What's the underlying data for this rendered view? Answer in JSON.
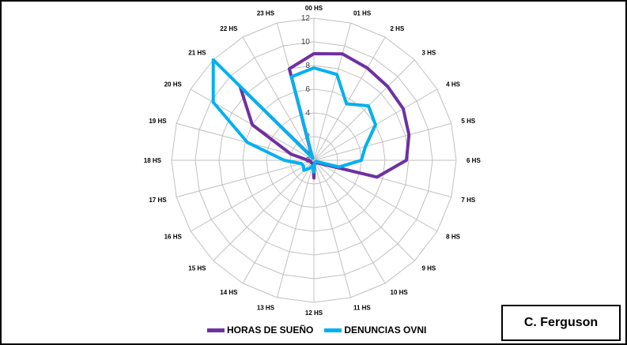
{
  "chart_data": {
    "type": "radar",
    "categories": [
      "00 HS",
      "01 HS",
      "2 HS",
      "3 HS",
      "4 HS",
      "5 HS",
      "6 HS",
      "7 HS",
      "8 HS",
      "9 HS",
      "10 HS",
      "11 HS",
      "12 HS",
      "13 HS",
      "14 HS",
      "15 HS",
      "16 HS",
      "17 HS",
      "18 HS",
      "19 HS",
      "20 HS",
      "21 HS",
      "22 HS",
      "23 HS"
    ],
    "rlim": [
      0,
      12
    ],
    "rticks": [
      "0",
      "2",
      "4",
      "6",
      "8",
      "10",
      "12"
    ],
    "grid": true,
    "legend_position": "bottom",
    "series": [
      {
        "name": "HORAS DE SUEÑO",
        "color": "#7030A0",
        "values": [
          9,
          9.3,
          9,
          8.8,
          8.7,
          8.3,
          7.8,
          5.5,
          0.5,
          0.3,
          0.2,
          0.2,
          1.5,
          0.3,
          0.3,
          0.3,
          0.3,
          0.3,
          0.5,
          2,
          6,
          8.8,
          0.3,
          8
        ]
      },
      {
        "name": "DENUNCIAS OVNI",
        "color": "#00B0F0",
        "values": [
          7.8,
          7.5,
          5.5,
          6.5,
          6,
          4.5,
          4,
          2.2,
          0.2,
          0.2,
          0.2,
          0.2,
          1,
          0.5,
          0.8,
          1.2,
          1,
          1.1,
          2.5,
          5.8,
          9.8,
          12,
          0.2,
          7.3
        ]
      }
    ]
  },
  "credit": "C. Ferguson"
}
